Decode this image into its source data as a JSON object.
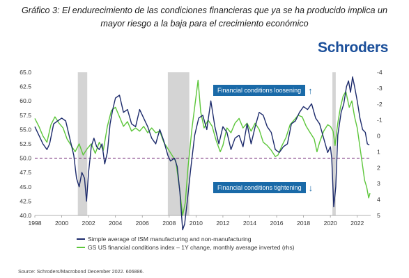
{
  "heading": {
    "line1": "Gráfico 3: El endurecimiento de las condiciones financieras que ya se ha producido implica un",
    "line2": "mayor riesgo a la baja para el crecimiento económico"
  },
  "logo": "Schroders",
  "source": "Source: Schroders/Macrobond December 2022. 606886.",
  "annotations": {
    "loosening": "Financial conditions loosening",
    "tightening": "Financial conditions tightening",
    "up_arrow": "↑",
    "down_arrow": "↓"
  },
  "legend": {
    "ism": "Simple average of ISM manufacturing and non-manufacturing",
    "gs": "GS US financial conditions index – 1Y change, monthly average inverted (rhs)"
  },
  "colors": {
    "ism": "#1c2a6b",
    "gs": "#5cc63a",
    "recession": "#d4d4d4",
    "threshold": "#6a1b6e",
    "annotation": "#1a6aa8"
  },
  "chart_data": {
    "type": "line",
    "left_axis": {
      "min": 40,
      "max": 65,
      "ticks": [
        "65.0",
        "62.5",
        "60.0",
        "57.5",
        "55.0",
        "52.5",
        "50.0",
        "47.5",
        "45.0",
        "42.5",
        "40.0"
      ]
    },
    "right_axis": {
      "min": -4,
      "max": 5,
      "inverted": true,
      "ticks": [
        "-4",
        "-3",
        "-2",
        "-1",
        "0",
        "1",
        "2",
        "3",
        "4",
        "5"
      ]
    },
    "x_axis": {
      "min": 1998,
      "max": 2023,
      "ticks": [
        "1998",
        "2000",
        "2002",
        "2004",
        "2006",
        "2008",
        "2010",
        "2012",
        "2014",
        "2016",
        "2018",
        "2020",
        "2022"
      ]
    },
    "threshold_line": 50,
    "recession_bands": [
      [
        2001.2,
        2001.9
      ],
      [
        2007.9,
        2009.5
      ],
      [
        2020.15,
        2020.4
      ]
    ],
    "series": [
      {
        "name": "Simple average of ISM manufacturing and non-manufacturing",
        "axis": "left",
        "points": [
          [
            1998.0,
            55.5
          ],
          [
            1998.3,
            54.0
          ],
          [
            1998.6,
            52.5
          ],
          [
            1998.9,
            51.5
          ],
          [
            1999.1,
            52.5
          ],
          [
            1999.4,
            56.0
          ],
          [
            1999.7,
            56.5
          ],
          [
            2000.0,
            57.0
          ],
          [
            2000.3,
            56.5
          ],
          [
            2000.6,
            53.5
          ],
          [
            2000.9,
            50.5
          ],
          [
            2001.1,
            46.5
          ],
          [
            2001.3,
            45.0
          ],
          [
            2001.5,
            47.5
          ],
          [
            2001.7,
            46.5
          ],
          [
            2001.85,
            42.5
          ],
          [
            2002.0,
            47.5
          ],
          [
            2002.2,
            52.0
          ],
          [
            2002.4,
            53.5
          ],
          [
            2002.6,
            52.0
          ],
          [
            2002.8,
            51.5
          ],
          [
            2003.0,
            52.5
          ],
          [
            2003.2,
            49.0
          ],
          [
            2003.4,
            51.0
          ],
          [
            2003.6,
            56.0
          ],
          [
            2003.8,
            58.5
          ],
          [
            2004.0,
            60.5
          ],
          [
            2004.3,
            61.0
          ],
          [
            2004.6,
            58.0
          ],
          [
            2004.9,
            58.5
          ],
          [
            2005.2,
            56.0
          ],
          [
            2005.5,
            55.5
          ],
          [
            2005.8,
            58.5
          ],
          [
            2006.1,
            57.0
          ],
          [
            2006.4,
            55.5
          ],
          [
            2006.7,
            53.5
          ],
          [
            2007.0,
            52.5
          ],
          [
            2007.3,
            55.0
          ],
          [
            2007.6,
            53.0
          ],
          [
            2007.9,
            50.5
          ],
          [
            2008.1,
            49.5
          ],
          [
            2008.4,
            50.0
          ],
          [
            2008.6,
            48.5
          ],
          [
            2008.8,
            44.0
          ],
          [
            2009.0,
            37.5
          ],
          [
            2009.15,
            38.5
          ],
          [
            2009.35,
            42.5
          ],
          [
            2009.6,
            48.0
          ],
          [
            2009.9,
            54.0
          ],
          [
            2010.2,
            57.0
          ],
          [
            2010.5,
            57.5
          ],
          [
            2010.8,
            55.0
          ],
          [
            2011.1,
            60.0
          ],
          [
            2011.4,
            55.5
          ],
          [
            2011.7,
            52.5
          ],
          [
            2012.0,
            55.5
          ],
          [
            2012.3,
            54.5
          ],
          [
            2012.6,
            51.5
          ],
          [
            2012.9,
            53.5
          ],
          [
            2013.2,
            54.0
          ],
          [
            2013.5,
            52.0
          ],
          [
            2013.8,
            56.0
          ],
          [
            2014.1,
            52.5
          ],
          [
            2014.4,
            55.5
          ],
          [
            2014.7,
            58.0
          ],
          [
            2015.0,
            57.5
          ],
          [
            2015.3,
            55.5
          ],
          [
            2015.6,
            54.5
          ],
          [
            2015.9,
            51.5
          ],
          [
            2016.2,
            51.0
          ],
          [
            2016.5,
            52.0
          ],
          [
            2016.8,
            52.5
          ],
          [
            2017.1,
            56.0
          ],
          [
            2017.4,
            56.5
          ],
          [
            2017.7,
            58.0
          ],
          [
            2018.0,
            59.0
          ],
          [
            2018.3,
            58.5
          ],
          [
            2018.6,
            59.5
          ],
          [
            2018.9,
            57.0
          ],
          [
            2019.2,
            56.0
          ],
          [
            2019.5,
            53.5
          ],
          [
            2019.8,
            51.0
          ],
          [
            2020.0,
            52.0
          ],
          [
            2020.1,
            50.0
          ],
          [
            2020.25,
            41.5
          ],
          [
            2020.4,
            45.0
          ],
          [
            2020.55,
            54.0
          ],
          [
            2020.8,
            58.0
          ],
          [
            2021.0,
            59.5
          ],
          [
            2021.2,
            62.5
          ],
          [
            2021.35,
            63.5
          ],
          [
            2021.5,
            61.5
          ],
          [
            2021.65,
            64.2
          ],
          [
            2021.8,
            62.5
          ],
          [
            2022.0,
            60.0
          ],
          [
            2022.2,
            57.0
          ],
          [
            2022.4,
            55.0
          ],
          [
            2022.6,
            54.5
          ],
          [
            2022.75,
            52.5
          ],
          [
            2022.9,
            52.3
          ]
        ]
      },
      {
        "name": "GS US financial conditions index – 1Y change, monthly average inverted (rhs)",
        "axis": "right",
        "points": [
          [
            1998.0,
            -1.1
          ],
          [
            1998.3,
            -0.6
          ],
          [
            1998.6,
            0.0
          ],
          [
            1998.9,
            0.4
          ],
          [
            1999.2,
            -0.7
          ],
          [
            1999.5,
            -1.2
          ],
          [
            1999.8,
            -0.8
          ],
          [
            2000.1,
            -0.5
          ],
          [
            2000.4,
            0.2
          ],
          [
            2000.7,
            0.6
          ],
          [
            2001.0,
            1.0
          ],
          [
            2001.3,
            0.5
          ],
          [
            2001.6,
            1.2
          ],
          [
            2001.9,
            0.8
          ],
          [
            2002.2,
            0.5
          ],
          [
            2002.5,
            1.1
          ],
          [
            2002.8,
            0.4
          ],
          [
            2003.1,
            0.9
          ],
          [
            2003.4,
            -0.6
          ],
          [
            2003.7,
            -1.6
          ],
          [
            2004.0,
            -1.8
          ],
          [
            2004.3,
            -1.2
          ],
          [
            2004.6,
            -0.6
          ],
          [
            2004.9,
            -0.9
          ],
          [
            2005.2,
            -0.3
          ],
          [
            2005.5,
            -0.5
          ],
          [
            2005.8,
            -0.3
          ],
          [
            2006.1,
            -0.6
          ],
          [
            2006.4,
            -0.2
          ],
          [
            2006.7,
            -0.5
          ],
          [
            2007.0,
            -0.2
          ],
          [
            2007.3,
            -0.3
          ],
          [
            2007.6,
            0.4
          ],
          [
            2007.9,
            0.8
          ],
          [
            2008.2,
            1.2
          ],
          [
            2008.5,
            1.6
          ],
          [
            2008.8,
            3.5
          ],
          [
            2009.0,
            5.0
          ],
          [
            2009.2,
            4.2
          ],
          [
            2009.4,
            2.0
          ],
          [
            2009.7,
            -0.5
          ],
          [
            2010.0,
            -2.5
          ],
          [
            2010.15,
            -3.5
          ],
          [
            2010.35,
            -1.5
          ],
          [
            2010.6,
            -0.5
          ],
          [
            2010.9,
            -1.0
          ],
          [
            2011.2,
            -0.6
          ],
          [
            2011.5,
            0.3
          ],
          [
            2011.8,
            1.0
          ],
          [
            2012.0,
            0.6
          ],
          [
            2012.3,
            -0.5
          ],
          [
            2012.6,
            -0.2
          ],
          [
            2012.9,
            -0.8
          ],
          [
            2013.2,
            -1.1
          ],
          [
            2013.5,
            -0.5
          ],
          [
            2013.8,
            -0.8
          ],
          [
            2014.1,
            -0.3
          ],
          [
            2014.4,
            -0.8
          ],
          [
            2014.7,
            -0.4
          ],
          [
            2015.0,
            0.4
          ],
          [
            2015.3,
            0.6
          ],
          [
            2015.6,
            0.9
          ],
          [
            2015.9,
            1.3
          ],
          [
            2016.1,
            1.2
          ],
          [
            2016.4,
            0.6
          ],
          [
            2016.7,
            0.1
          ],
          [
            2017.0,
            -0.7
          ],
          [
            2017.3,
            -1.0
          ],
          [
            2017.6,
            -1.3
          ],
          [
            2017.9,
            -1.2
          ],
          [
            2018.2,
            -0.6
          ],
          [
            2018.5,
            -0.2
          ],
          [
            2018.8,
            0.2
          ],
          [
            2019.0,
            1.0
          ],
          [
            2019.2,
            0.4
          ],
          [
            2019.5,
            -0.3
          ],
          [
            2019.8,
            -0.7
          ],
          [
            2020.0,
            -0.6
          ],
          [
            2020.2,
            -0.3
          ],
          [
            2020.35,
            0.6
          ],
          [
            2020.55,
            -0.8
          ],
          [
            2020.75,
            -1.8
          ],
          [
            2020.95,
            -2.5
          ],
          [
            2021.15,
            -2.8
          ],
          [
            2021.4,
            -1.8
          ],
          [
            2021.6,
            -2.2
          ],
          [
            2021.8,
            -1.2
          ],
          [
            2022.0,
            -0.5
          ],
          [
            2022.15,
            0.4
          ],
          [
            2022.35,
            1.6
          ],
          [
            2022.55,
            2.8
          ],
          [
            2022.7,
            3.2
          ],
          [
            2022.85,
            3.9
          ],
          [
            2022.95,
            3.6
          ]
        ]
      }
    ]
  }
}
